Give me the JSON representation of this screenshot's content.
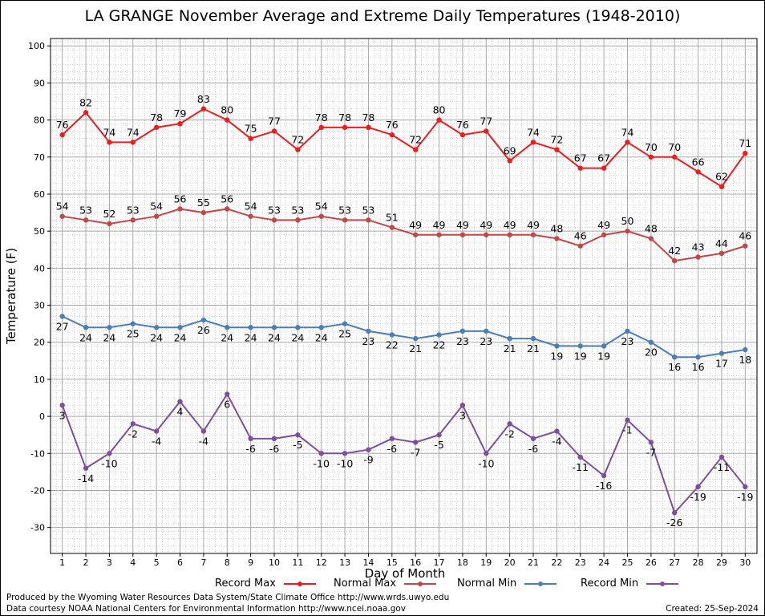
{
  "title": "LA GRANGE November Average and Extreme Daily Temperatures (1948-2010)",
  "footer": {
    "line1": "Produced by the Wyoming Water Resources Data System/State Climate Office http://www.wrds.uwyo.edu",
    "line2": "Data courtesy NOAA National Centers for Environmental Information http://www.ncei.noaa.gov",
    "created": "Created:  25-Sep-2024"
  },
  "legend": {
    "record_max": "Record Max",
    "normal_max": "Normal Max",
    "normal_min": "Normal Min",
    "record_min": "Record Min"
  },
  "chart_data": {
    "type": "line",
    "title": "LA GRANGE November Average and Extreme Daily Temperatures (1948-2010)",
    "xlabel": "Day of Month",
    "ylabel": "Temperature (F)",
    "x": [
      1,
      2,
      3,
      4,
      5,
      6,
      7,
      8,
      9,
      10,
      11,
      12,
      13,
      14,
      15,
      16,
      17,
      18,
      19,
      20,
      21,
      22,
      23,
      24,
      25,
      26,
      27,
      28,
      29,
      30
    ],
    "xlim": [
      0.5,
      30.5
    ],
    "ylim": [
      -37,
      102
    ],
    "yticks": [
      -30,
      -20,
      -10,
      0,
      10,
      20,
      30,
      40,
      50,
      60,
      70,
      80,
      90,
      100
    ],
    "grid": true,
    "legend_position": "bottom",
    "series": [
      {
        "name": "Record Max",
        "color": "#ee1c1c",
        "label_pos": "above",
        "values": [
          76,
          82,
          74,
          74,
          78,
          79,
          83,
          80,
          75,
          77,
          72,
          78,
          78,
          78,
          76,
          72,
          80,
          76,
          77,
          69,
          74,
          72,
          67,
          67,
          74,
          70,
          70,
          66,
          62,
          71
        ]
      },
      {
        "name": "Normal Max",
        "color": "#c0484a",
        "label_pos": "above",
        "values": [
          54,
          53,
          52,
          53,
          54,
          56,
          55,
          56,
          54,
          53,
          53,
          54,
          53,
          53,
          51,
          49,
          49,
          49,
          49,
          49,
          49,
          48,
          46,
          49,
          50,
          48,
          42,
          43,
          44,
          46
        ]
      },
      {
        "name": "Normal Min",
        "color": "#4a7eb4",
        "label_pos": "below",
        "values": [
          27,
          24,
          24,
          25,
          24,
          24,
          26,
          24,
          24,
          24,
          24,
          24,
          25,
          23,
          22,
          21,
          22,
          23,
          23,
          21,
          21,
          19,
          19,
          19,
          23,
          20,
          16,
          16,
          17,
          18
        ]
      },
      {
        "name": "Record Min",
        "color": "#7e4e9e",
        "label_pos": "below",
        "values": [
          3,
          -14,
          -10,
          -2,
          -4,
          4,
          -4,
          6,
          -6,
          -6,
          -5,
          -10,
          -10,
          -9,
          -6,
          -7,
          -5,
          3,
          -10,
          -2,
          -6,
          -4,
          -11,
          -16,
          -1,
          -7,
          -26,
          -19,
          -11,
          -19
        ]
      }
    ]
  }
}
